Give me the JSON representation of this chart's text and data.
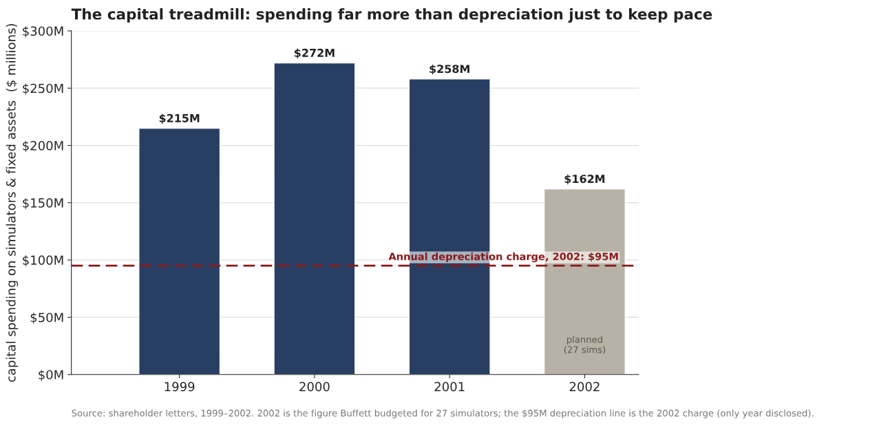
{
  "chart_data": {
    "type": "bar",
    "title": "The capital treadmill: spending far more than depreciation just to keep pace",
    "ylabel": "capital spending on simulators & fixed assets  ($ millions)",
    "categories": [
      "1999",
      "2000",
      "2001",
      "2002"
    ],
    "values": [
      215,
      272,
      258,
      162
    ],
    "colors": [
      "#283f63",
      "#283f63",
      "#283f63",
      "#b8b2a6"
    ],
    "value_labels": [
      "$215M",
      "$272M",
      "$258M",
      "$162M"
    ],
    "ylim": [
      0,
      300
    ],
    "yticks": [
      {
        "value": 0,
        "label": "$0M"
      },
      {
        "value": 50,
        "label": "$50M"
      },
      {
        "value": 100,
        "label": "$100M"
      },
      {
        "value": 150,
        "label": "$150M"
      },
      {
        "value": 200,
        "label": "$200M"
      },
      {
        "value": 250,
        "label": "$250M"
      },
      {
        "value": 300,
        "label": "$300M"
      }
    ],
    "grid": "y",
    "ref_lines": [
      {
        "axis": "y",
        "value": 95,
        "label": "Annual depreciation charge, 2002: $95M",
        "color": "#8b1a1a",
        "line_style": "dashed"
      }
    ],
    "annotations": [
      "planned\n(27 sims)",
      "Source: shareholder letters, 1999–2002. 2002 is the figure Buffett budgeted for 27 simulators; the $95M depreciation line is the 2002 charge (only year disclosed)."
    ]
  }
}
